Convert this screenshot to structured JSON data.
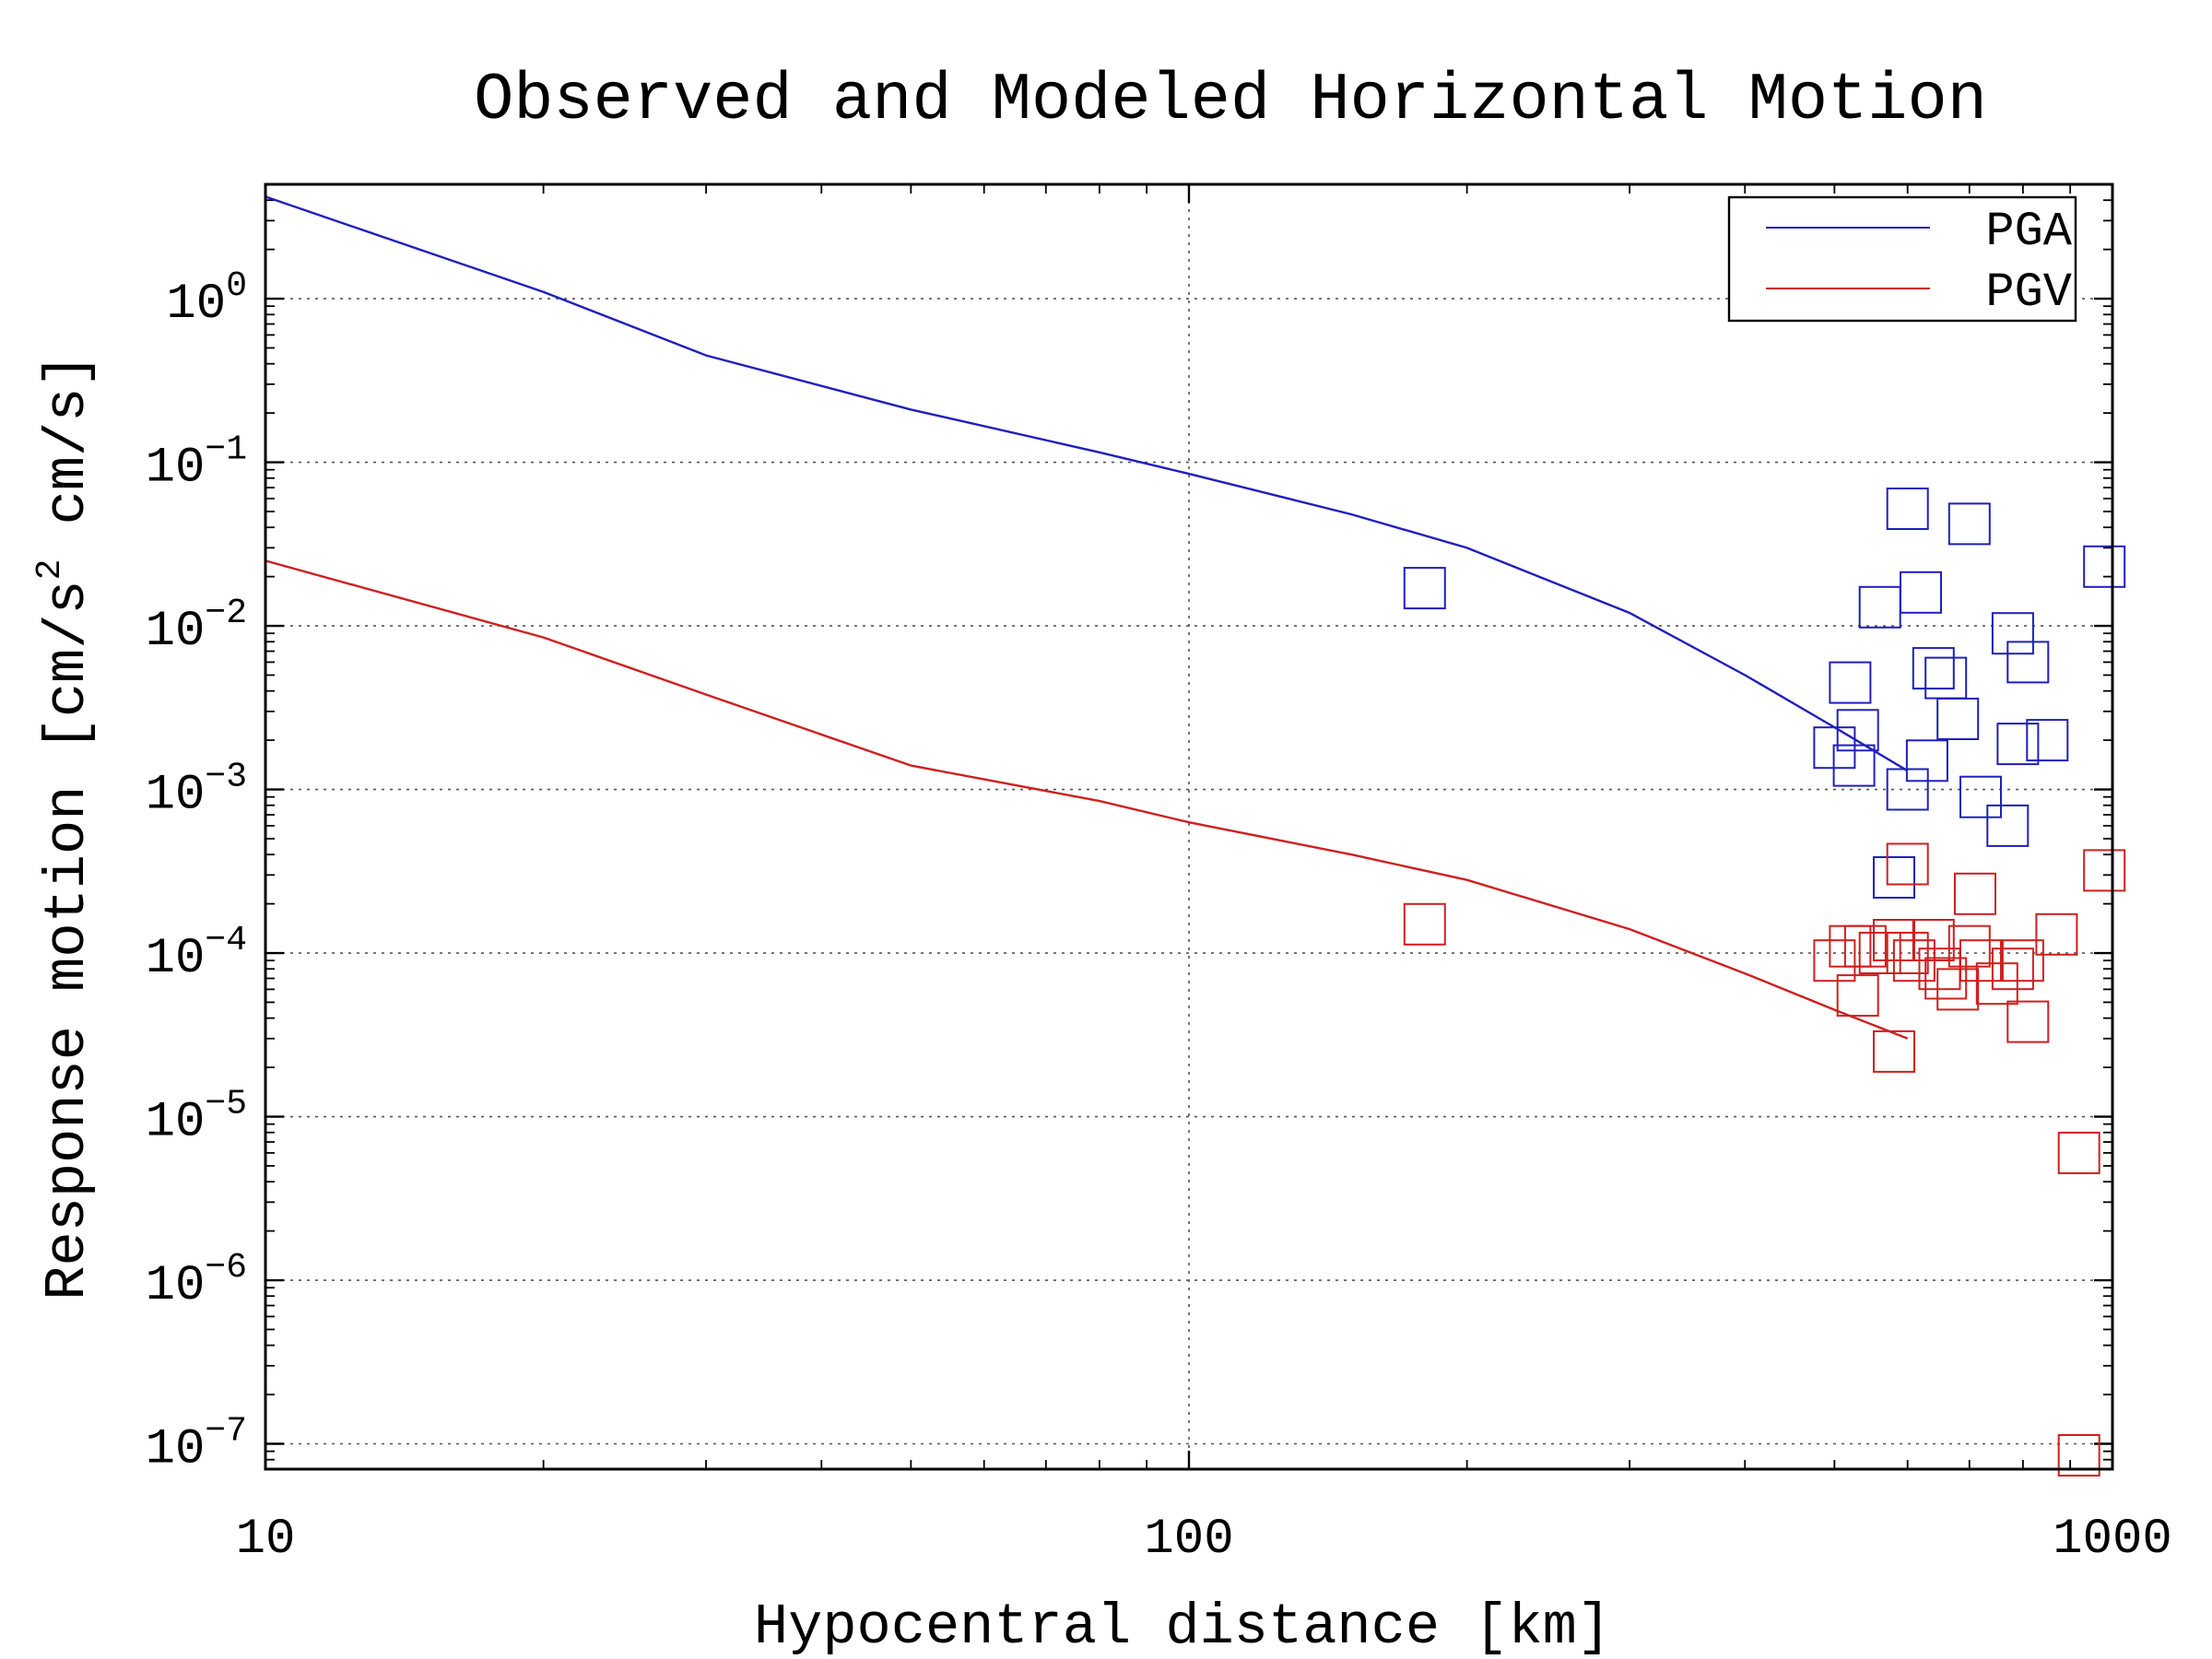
{
  "chart_data": {
    "type": "scatter",
    "title": "Observed and Modeled Horizontal Motion",
    "xlabel": "Hypocentral distance [km]",
    "ylabel": "Response motion [cm/s",
    "ylabel_sup": "2",
    "ylabel_tail": " cm/s]",
    "xscale": "log",
    "yscale": "log",
    "xlim": [
      10,
      1000
    ],
    "ylim": [
      7e-08,
      5
    ],
    "grid": true,
    "legend_position": "top-right",
    "x_ticks": [
      {
        "value": 10,
        "label": "10"
      },
      {
        "value": 100,
        "label": "100"
      },
      {
        "value": 1000,
        "label": "1000"
      }
    ],
    "y_ticks": [
      {
        "value": 1e-07,
        "base": "10",
        "exp": "−7"
      },
      {
        "value": 1e-06,
        "base": "10",
        "exp": "−6"
      },
      {
        "value": 1e-05,
        "base": "10",
        "exp": "−5"
      },
      {
        "value": 0.0001,
        "base": "10",
        "exp": "−4"
      },
      {
        "value": 0.001,
        "base": "10",
        "exp": "−3"
      },
      {
        "value": 0.01,
        "base": "10",
        "exp": "−2"
      },
      {
        "value": 0.1,
        "base": "10",
        "exp": "−1"
      },
      {
        "value": 1,
        "base": "10",
        "exp": "0"
      }
    ],
    "series": [
      {
        "name": "PGA",
        "color": "#1f1fbf",
        "model_line": {
          "x": [
            10,
            20,
            30,
            50,
            80,
            100,
            150,
            200,
            300,
            400,
            500,
            600
          ],
          "y": [
            4.2,
            1.1,
            0.45,
            0.21,
            0.115,
            0.085,
            0.048,
            0.03,
            0.012,
            0.005,
            0.0024,
            0.0013
          ]
        },
        "observed": {
          "x": [
            180,
            600,
            700,
            620,
            560,
            980,
            780,
            640,
            660,
            810,
            520,
            680,
            530,
            500,
            630,
            790,
            850,
            525,
            600,
            720,
            770,
            580
          ],
          "y": [
            0.017,
            0.052,
            0.042,
            0.016,
            0.013,
            0.023,
            0.009,
            0.0055,
            0.0048,
            0.006,
            0.0045,
            0.0027,
            0.0023,
            0.0018,
            0.0015,
            0.0019,
            0.002,
            0.0014,
            0.001,
            0.0009,
            0.0006,
            0.00029
          ]
        }
      },
      {
        "name": "PGV",
        "color": "#cf1f1f",
        "model_line": {
          "x": [
            10,
            20,
            30,
            50,
            80,
            100,
            150,
            200,
            300,
            400,
            500,
            600
          ],
          "y": [
            0.025,
            0.0085,
            0.0038,
            0.0014,
            0.00085,
            0.00063,
            0.0004,
            0.00028,
            0.00014,
            7.5e-05,
            4.5e-05,
            3e-05
          ]
        },
        "observed": {
          "x": [
            180,
            600,
            980,
            710,
            870,
            500,
            520,
            540,
            560,
            580,
            600,
            610,
            640,
            650,
            660,
            700,
            720,
            780,
            800,
            810,
            530,
            680,
            750,
            580,
            920,
            920
          ],
          "y": [
            0.00015,
            0.00035,
            0.00032,
            0.00023,
            0.00013,
            9e-05,
            0.00011,
            0.00011,
            0.0001,
            0.00012,
            0.0001,
            9e-05,
            0.00012,
            8e-05,
            7e-05,
            0.00011,
            9e-05,
            8e-05,
            9e-05,
            3.8e-05,
            5.5e-05,
            6e-05,
            6.5e-05,
            2.5e-05,
            6e-06,
            8.5e-08
          ]
        }
      }
    ]
  }
}
